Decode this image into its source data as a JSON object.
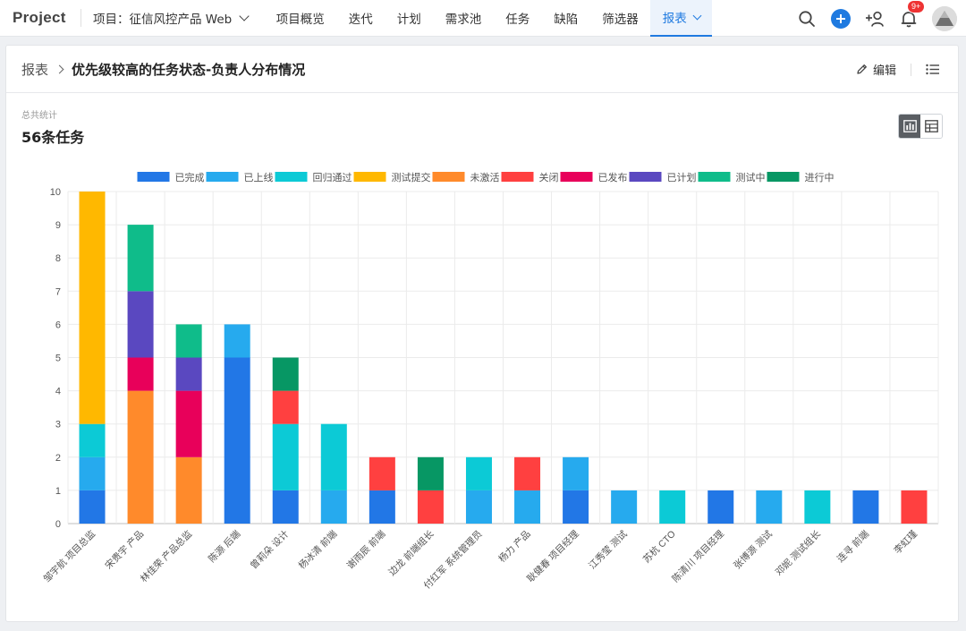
{
  "nav": {
    "brand": "Project",
    "project_label": "项目：征信风控产品 Web",
    "tabs": [
      {
        "label": "项目概览"
      },
      {
        "label": "迭代"
      },
      {
        "label": "计划"
      },
      {
        "label": "需求池"
      },
      {
        "label": "任务"
      },
      {
        "label": "缺陷"
      },
      {
        "label": "筛选器"
      }
    ],
    "active_tab": "报表",
    "notification_badge": "9+",
    "icons": [
      "search-icon",
      "plus-icon",
      "add-user-icon",
      "bell-icon",
      "avatar"
    ]
  },
  "header": {
    "breadcrumb_root": "报表",
    "title": "优先级较高的任务状态-负责人分布情况",
    "edit_label": "编辑"
  },
  "summary": {
    "label": "总共统计",
    "value": "56条任务"
  },
  "colors": {
    "accent": "#1f7ae0"
  },
  "chart_data": {
    "type": "bar",
    "stacked": true,
    "title": "",
    "xlabel": "",
    "ylabel": "",
    "ylim": [
      0,
      10
    ],
    "yticks": [
      0,
      1,
      2,
      3,
      4,
      5,
      6,
      7,
      8,
      9,
      10
    ],
    "grid": true,
    "legend_position": "top",
    "categories": [
      "邹宇航 项目总监",
      "宋贵宇 产品",
      "林佳荣 产品总监",
      "陈源 后端",
      "曾莉朵 设计",
      "杨冰清 前端",
      "谢雨辰 前端",
      "边龙 前端组长",
      "付红军 系统管理员",
      "杨力 产品",
      "耿健春 项目经理",
      "江秀莹 测试",
      "苏杭 CTO",
      "陈清川 项目经理",
      "张博源 测试",
      "邓妮 测试组长",
      "连寻 前端",
      "李虹瑾"
    ],
    "series": [
      {
        "name": "已完成",
        "color": "#2277e6",
        "values": [
          1,
          0,
          0,
          5,
          1,
          0,
          1,
          0,
          0,
          0,
          1,
          0,
          0,
          1,
          0,
          0,
          1,
          0
        ]
      },
      {
        "name": "已上线",
        "color": "#26aaee",
        "values": [
          1,
          0,
          0,
          1,
          0,
          1,
          0,
          0,
          1,
          1,
          1,
          1,
          0,
          0,
          1,
          0,
          0,
          0
        ]
      },
      {
        "name": "回归通过",
        "color": "#0ccad6",
        "values": [
          1,
          0,
          0,
          0,
          2,
          2,
          0,
          0,
          1,
          0,
          0,
          0,
          1,
          0,
          0,
          1,
          0,
          0
        ]
      },
      {
        "name": "测试提交",
        "color": "#ffb800",
        "values": [
          7,
          0,
          0,
          0,
          0,
          0,
          0,
          0,
          0,
          0,
          0,
          0,
          0,
          0,
          0,
          0,
          0,
          0
        ]
      },
      {
        "name": "未激活",
        "color": "#ff8a2b",
        "values": [
          0,
          4,
          2,
          0,
          0,
          0,
          0,
          0,
          0,
          0,
          0,
          0,
          0,
          0,
          0,
          0,
          0,
          0
        ]
      },
      {
        "name": "关闭",
        "color": "#ff4040",
        "values": [
          0,
          0,
          0,
          0,
          1,
          0,
          1,
          1,
          0,
          1,
          0,
          0,
          0,
          0,
          0,
          0,
          0,
          1
        ]
      },
      {
        "name": "已发布",
        "color": "#e8005a",
        "values": [
          0,
          1,
          2,
          0,
          0,
          0,
          0,
          0,
          0,
          0,
          0,
          0,
          0,
          0,
          0,
          0,
          0,
          0
        ]
      },
      {
        "name": "已计划",
        "color": "#5a48c0",
        "values": [
          0,
          2,
          1,
          0,
          0,
          0,
          0,
          0,
          0,
          0,
          0,
          0,
          0,
          0,
          0,
          0,
          0,
          0
        ]
      },
      {
        "name": "测试中",
        "color": "#0fbc8a",
        "values": [
          0,
          2,
          1,
          0,
          0,
          0,
          0,
          0,
          0,
          0,
          0,
          0,
          0,
          0,
          0,
          0,
          0,
          0
        ]
      },
      {
        "name": "进行中",
        "color": "#079764",
        "values": [
          0,
          0,
          0,
          0,
          1,
          0,
          0,
          1,
          0,
          0,
          0,
          0,
          0,
          0,
          0,
          0,
          0,
          0
        ]
      }
    ]
  }
}
